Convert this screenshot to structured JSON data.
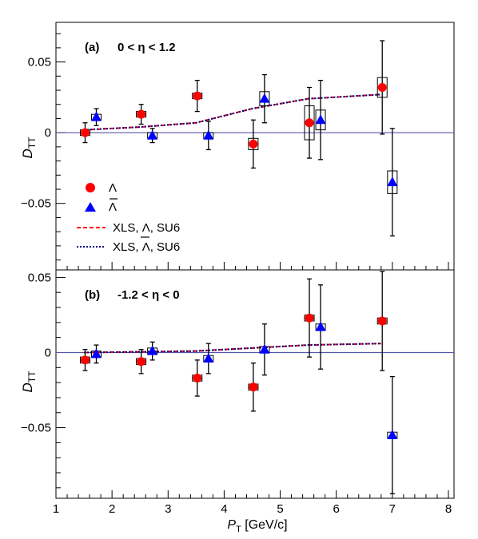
{
  "chart_data": [
    {
      "type": "scatter",
      "panel_label": "(a)",
      "eta_range": "0 < η < 1.2",
      "xlabel": "P",
      "xlabel_sub": "T",
      "xlabel_unit": " [GeV/c]",
      "ylabel": "D",
      "ylabel_sub": "TT",
      "xlim": [
        1,
        8.1
      ],
      "ylim": [
        -0.097,
        0.078
      ],
      "y_ticks": [
        {
          "value": 0.05,
          "label": "0.05"
        },
        {
          "value": 0,
          "label": "0"
        },
        {
          "value": -0.05,
          "label": "−0.05"
        }
      ],
      "reference_line": 0,
      "series": [
        {
          "name": "Λ",
          "marker": "circle",
          "color": "#ff0000",
          "points": [
            {
              "x": 1.52,
              "y": 0.0,
              "err": 0.007,
              "sys": 0.002
            },
            {
              "x": 2.52,
              "y": 0.013,
              "err": 0.007,
              "sys": 0.002
            },
            {
              "x": 3.52,
              "y": 0.026,
              "err": 0.011,
              "sys": 0.002
            },
            {
              "x": 4.52,
              "y": -0.008,
              "err": 0.017,
              "sys": 0.004
            },
            {
              "x": 5.52,
              "y": 0.007,
              "err": 0.025,
              "sys": 0.012
            },
            {
              "x": 6.82,
              "y": 0.032,
              "err": 0.033,
              "sys": 0.007
            }
          ]
        },
        {
          "name": "Λ̄",
          "marker": "triangle",
          "color": "#0000ff",
          "points": [
            {
              "x": 1.72,
              "y": 0.011,
              "err": 0.006,
              "sys": 0.002
            },
            {
              "x": 2.72,
              "y": -0.002,
              "err": 0.005,
              "sys": 0.002
            },
            {
              "x": 3.72,
              "y": -0.002,
              "err": 0.01,
              "sys": 0.002
            },
            {
              "x": 4.72,
              "y": 0.024,
              "err": 0.017,
              "sys": 0.005
            },
            {
              "x": 5.72,
              "y": 0.009,
              "err": 0.028,
              "sys": 0.007
            },
            {
              "x": 7.0,
              "y": -0.035,
              "err": 0.038,
              "sys": 0.008
            }
          ]
        },
        {
          "name": "XLS, Λ, SU6",
          "style": "dashed",
          "color": "#ff0000",
          "x": [
            1.5,
            2.5,
            3.5,
            4.5,
            5.5,
            6.8
          ],
          "y": [
            0.002,
            0.004,
            0.007,
            0.017,
            0.024,
            0.027
          ]
        },
        {
          "name": "XLS, Λ̄, SU6",
          "style": "dotted",
          "color": "#000080",
          "x": [
            1.5,
            2.5,
            3.5,
            4.5,
            5.5,
            6.8
          ],
          "y": [
            0.002,
            0.004,
            0.007,
            0.017,
            0.024,
            0.027
          ]
        }
      ]
    },
    {
      "type": "scatter",
      "panel_label": "(b)",
      "eta_range": "-1.2 < η < 0",
      "xlabel": "P",
      "xlabel_sub": "T",
      "xlabel_unit": " [GeV/c]",
      "ylabel": "D",
      "ylabel_sub": "TT",
      "xlim": [
        1,
        8.1
      ],
      "ylim": [
        -0.097,
        0.055
      ],
      "x_ticks": [
        1,
        2,
        3,
        4,
        5,
        6,
        7,
        8
      ],
      "y_ticks": [
        {
          "value": 0.05,
          "label": "0.05"
        },
        {
          "value": 0,
          "label": "0"
        },
        {
          "value": -0.05,
          "label": "−0.05"
        }
      ],
      "reference_line": 0,
      "series": [
        {
          "name": "Λ",
          "marker": "circle",
          "color": "#ff0000",
          "points": [
            {
              "x": 1.52,
              "y": -0.005,
              "err": 0.007,
              "sys": 0.002
            },
            {
              "x": 2.52,
              "y": -0.006,
              "err": 0.008,
              "sys": 0.002
            },
            {
              "x": 3.52,
              "y": -0.017,
              "err": 0.012,
              "sys": 0.002
            },
            {
              "x": 4.52,
              "y": -0.023,
              "err": 0.016,
              "sys": 0.002
            },
            {
              "x": 5.52,
              "y": 0.023,
              "err": 0.026,
              "sys": 0.002
            },
            {
              "x": 6.82,
              "y": 0.021,
              "err": 0.033,
              "sys": 0.002
            }
          ]
        },
        {
          "name": "Λ̄",
          "marker": "triangle",
          "color": "#0000ff",
          "points": [
            {
              "x": 1.72,
              "y": -0.001,
              "err": 0.006,
              "sys": 0.002
            },
            {
              "x": 2.72,
              "y": 0.001,
              "err": 0.006,
              "sys": 0.002
            },
            {
              "x": 3.72,
              "y": -0.004,
              "err": 0.01,
              "sys": 0.002
            },
            {
              "x": 4.72,
              "y": 0.002,
              "err": 0.017,
              "sys": 0.002
            },
            {
              "x": 5.72,
              "y": 0.017,
              "err": 0.028,
              "sys": 0.002
            },
            {
              "x": 7.0,
              "y": -0.055,
              "err": 0.039,
              "sys": 0.002
            }
          ]
        },
        {
          "name": "XLS, Λ, SU6",
          "style": "dashed",
          "color": "#ff0000",
          "x": [
            1.5,
            2.5,
            3.5,
            4.5,
            5.5,
            6.8
          ],
          "y": [
            0.0,
            0.0005,
            0.001,
            0.003,
            0.005,
            0.006
          ]
        },
        {
          "name": "XLS, Λ̄, SU6",
          "style": "dotted",
          "color": "#000080",
          "x": [
            1.5,
            2.5,
            3.5,
            4.5,
            5.5,
            6.8
          ],
          "y": [
            0.0,
            0.0005,
            0.001,
            0.003,
            0.005,
            0.006
          ]
        }
      ]
    }
  ],
  "legend": {
    "placement": "left, middle of panel (a)",
    "entries": [
      {
        "label": "Λ",
        "bar": false,
        "symbol": "circle",
        "color": "#ff0000"
      },
      {
        "label": "Λ",
        "bar": true,
        "symbol": "triangle",
        "color": "#0000ff"
      },
      {
        "label_pre": "XLS, ",
        "label_sym": "Λ",
        "label_post": ", SU6",
        "bar": false,
        "symbol": "dashed",
        "color": "#ff0000"
      },
      {
        "label_pre": "XLS, ",
        "label_sym": "Λ",
        "label_post": ", SU6",
        "bar": true,
        "symbol": "dotted",
        "color": "#000080"
      }
    ]
  },
  "colors": {
    "lambda": "#ff0000",
    "antilambda": "#0000ff",
    "zero_line": "#5555aa",
    "axes": "#000000"
  }
}
